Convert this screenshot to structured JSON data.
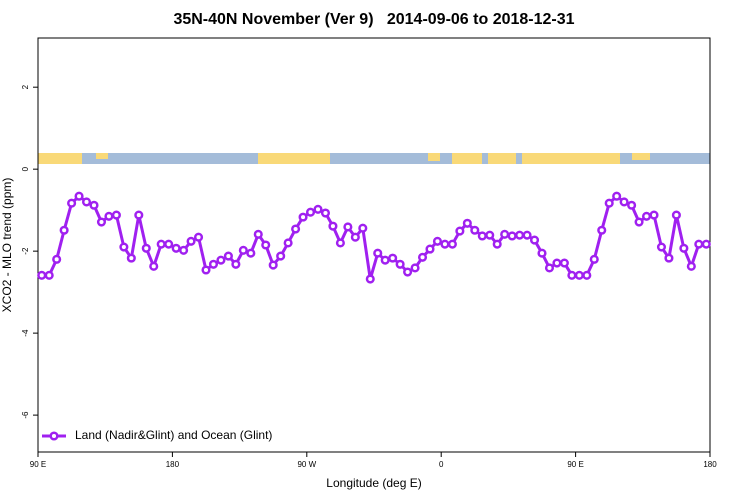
{
  "chart_data": {
    "type": "line",
    "title": "35N-40N November (Ver 9)   2014-09-06 to 2018-12-31",
    "x_label": "Longitude (deg E)",
    "y_label": "XCO2 - MLO trend (ppm)",
    "xlim": [
      90,
      540
    ],
    "ylim": [
      -6.9,
      3.2
    ],
    "xticks": [
      {
        "value": 90,
        "label": "90 E"
      },
      180,
      {
        "value": 270,
        "label": "90 W"
      },
      {
        "value": 360,
        "label": "0"
      },
      {
        "value": 450,
        "label": "90 E"
      },
      {
        "value": 540,
        "label": "180"
      }
    ],
    "yticks": [
      2,
      0,
      -2,
      -4,
      -6
    ],
    "legend": "bottom-left",
    "x": [
      92.5,
      97.5,
      102.5,
      107.5,
      112.5,
      117.5,
      122.5,
      127.5,
      132.5,
      137.5,
      142.5,
      147.5,
      152.5,
      157.5,
      162.5,
      167.5,
      172.5,
      177.5,
      182.5,
      187.5,
      192.5,
      197.5,
      202.5,
      207.5,
      212.5,
      217.5,
      222.5,
      227.5,
      232.5,
      237.5,
      242.5,
      247.5,
      252.5,
      257.5,
      262.5,
      267.5,
      272.5,
      277.5,
      282.5,
      287.5,
      292.5,
      297.5,
      302.5,
      307.5,
      312.5,
      317.5,
      322.5,
      327.5,
      332.5,
      337.5,
      342.5,
      347.5,
      352.5,
      357.5,
      362.5,
      367.5,
      372.5,
      377.5,
      382.5,
      387.5,
      392.5,
      397.5,
      402.5,
      407.5,
      412.5,
      417.5,
      422.5,
      427.5,
      432.5,
      437.5,
      442.5,
      447.5,
      452.5,
      457.5,
      462.5,
      467.5,
      472.5,
      477.5,
      482.5,
      487.5,
      492.5,
      497.5,
      502.5,
      507.5,
      512.5,
      517.5,
      522.5,
      527.5,
      532.5,
      537.5
    ],
    "series": [
      {
        "name": "Land (Nadir&Glint) and Ocean (Glint)",
        "color": "#a020f0",
        "values": [
          -2.59,
          -2.59,
          -2.2,
          -1.49,
          -0.83,
          -0.66,
          -0.8,
          -0.88,
          -1.29,
          -1.15,
          -1.12,
          -1.9,
          -2.17,
          -1.12,
          -1.93,
          -2.37,
          -1.83,
          -1.83,
          -1.93,
          -1.98,
          -1.76,
          -1.66,
          -2.46,
          -2.32,
          -2.22,
          -2.12,
          -2.32,
          -1.98,
          -2.05,
          -1.59,
          -1.85,
          -2.34,
          -2.12,
          -1.8,
          -1.46,
          -1.17,
          -1.05,
          -0.98,
          -1.07,
          -1.39,
          -1.8,
          -1.41,
          -1.66,
          -1.44,
          -2.68,
          -2.05,
          -2.22,
          -2.17,
          -2.32,
          -2.51,
          -2.41,
          -2.15,
          -1.95,
          -1.76,
          -1.83,
          -1.83,
          -1.51,
          -1.32,
          -1.49,
          -1.63,
          -1.61,
          -1.83,
          -1.59,
          -1.63,
          -1.61,
          -1.61,
          -1.73,
          -2.05,
          -2.41,
          -2.29,
          -2.29,
          -2.59,
          -2.59,
          -2.59,
          -2.2,
          -1.49,
          -0.83,
          -0.66,
          -0.8,
          -0.88,
          -1.29,
          -1.15,
          -1.12,
          -1.9,
          -2.17,
          -1.12,
          -1.93,
          -2.37,
          -1.83,
          -1.83
        ]
      }
    ]
  }
}
